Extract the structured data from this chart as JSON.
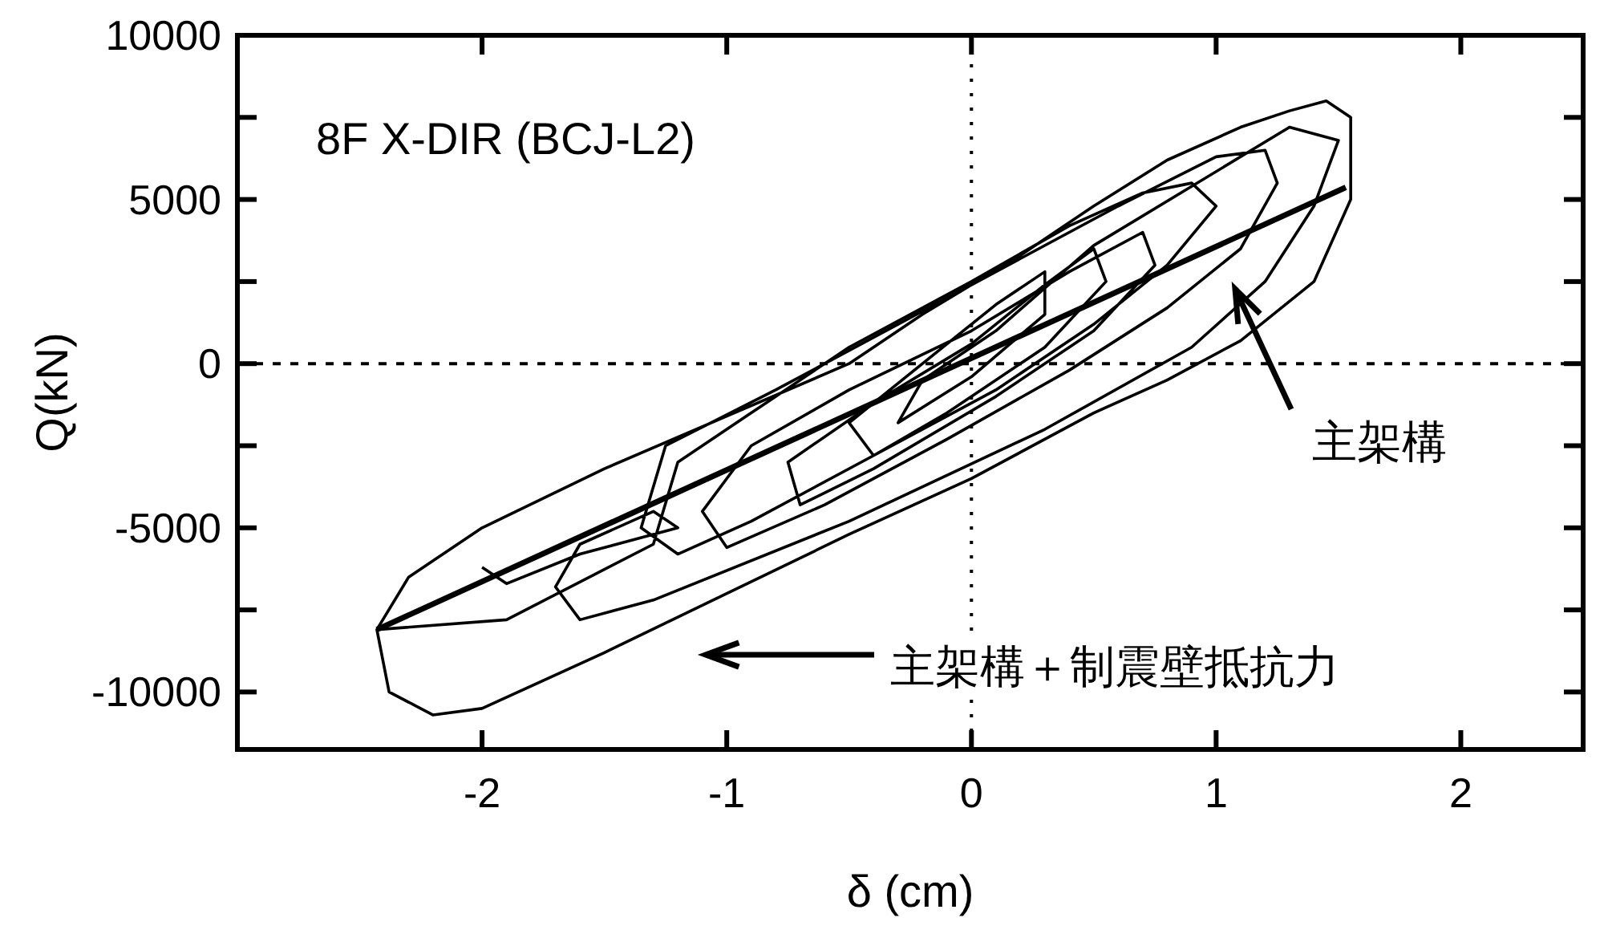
{
  "chart_data": {
    "type": "line",
    "xlabel": "δ (cm)",
    "ylabel": "Q(kN)",
    "xlim": [
      -3,
      2.5
    ],
    "ylim": [
      -11750,
      10000
    ],
    "xticks": [
      -2,
      -1,
      0,
      1,
      2
    ],
    "yticks": [
      10000,
      {
        "value": 7500,
        "label": null
      },
      5000,
      {
        "value": 2500,
        "label": null
      },
      0,
      {
        "value": -2500,
        "label": null
      },
      -5000,
      {
        "value": -7500,
        "label": null
      },
      -10000
    ],
    "line_style": "solid",
    "series": [
      {
        "color": "#000000",
        "x": [
          -2.43,
          -2.3,
          -2.0,
          -1.5,
          -1.0,
          -0.5,
          -0.2,
          0.2,
          0.5,
          0.8,
          1.1,
          1.3,
          1.45,
          1.55,
          1.55,
          1.4,
          1.1,
          0.8,
          0.5,
          0.0,
          -0.5,
          -1.0,
          -1.5,
          -2.0,
          -2.2,
          -2.38,
          -2.43,
          -1.9,
          -1.3,
          -1.2,
          -0.9,
          -0.5,
          0.0,
          0.4,
          0.7,
          0.9,
          1.0,
          0.8,
          0.5,
          0.1,
          -0.4,
          -0.9,
          -1.2,
          -1.35,
          -1.25,
          -0.8,
          -0.3,
          0.2,
          0.6,
          1.0,
          1.2,
          1.25,
          1.1,
          0.8,
          0.4,
          -0.1,
          -0.6,
          -1.0,
          -1.1,
          -0.9,
          -0.5,
          0.0,
          0.4,
          0.7,
          0.75,
          0.5,
          0.1,
          -0.4,
          -0.7,
          -0.75,
          -0.4,
          0.0,
          0.3,
          0.5,
          0.55,
          0.3,
          -0.1,
          -0.4,
          -0.5,
          -0.2,
          0.1,
          0.3,
          0.3,
          0.0,
          -0.3,
          -0.2,
          0.1,
          0.5,
          1.3,
          1.5,
          1.4,
          1.2,
          0.9,
          0.3,
          -0.5,
          -1.3,
          -1.6,
          -1.7,
          -1.6,
          -1.3,
          -1.2,
          -1.6,
          -1.9,
          -2.0
        ],
        "values": [
          -8100,
          -6500,
          -5000,
          -3200,
          -1600,
          0,
          1500,
          3300,
          4800,
          6200,
          7200,
          7700,
          8000,
          7500,
          5000,
          2500,
          700,
          -500,
          -1500,
          -3500,
          -5200,
          -7000,
          -8800,
          -10500,
          -10700,
          -10000,
          -8100,
          -7800,
          -5500,
          -3000,
          -1500,
          500,
          2500,
          4200,
          5200,
          5500,
          4800,
          3000,
          1200,
          -800,
          -2800,
          -4800,
          -5800,
          -5000,
          -2500,
          -800,
          1200,
          3200,
          4800,
          6300,
          6500,
          5500,
          3500,
          1700,
          -200,
          -2300,
          -4300,
          -5600,
          -4500,
          -2500,
          -800,
          1000,
          2800,
          4000,
          3000,
          1000,
          -1000,
          -3200,
          -4300,
          -3000,
          -1200,
          600,
          2400,
          3500,
          2500,
          500,
          -1500,
          -2800,
          -1800,
          0,
          1800,
          2800,
          1500,
          -400,
          -1800,
          -500,
          1000,
          3600,
          7200,
          6800,
          4800,
          2500,
          500,
          -2000,
          -4800,
          -7200,
          -7800,
          -6800,
          -5500,
          -4500,
          -5000,
          -5800,
          -6700,
          -6200
        ]
      },
      {
        "color": "#000000",
        "x": [
          -2.43,
          1.53
        ],
        "values": [
          -8100,
          5370
        ]
      }
    ],
    "ref_lines": [
      {
        "axis": "x",
        "value": 0,
        "color": "#000000",
        "line_style": "dotted"
      },
      {
        "axis": "y",
        "value": 0,
        "color": "#000000",
        "line_style": "dashed"
      }
    ],
    "annotations": [
      "8F  X-DIR (BCJ-L2)",
      "主架構",
      "主架構＋制震壁抵抗力"
    ]
  }
}
